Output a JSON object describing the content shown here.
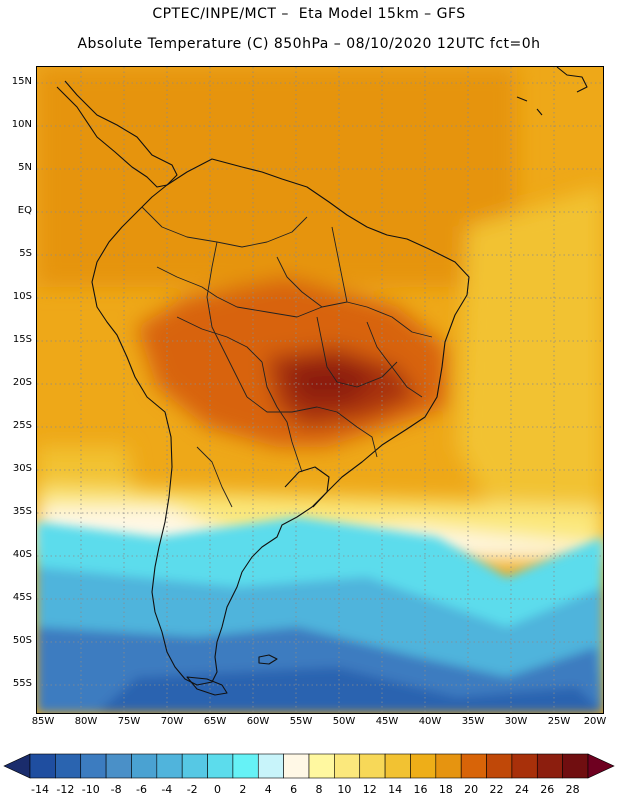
{
  "header": {
    "line1": "CPTEC/INPE/MCT –  Eta Model 15km – GFS",
    "line2": "Absolute Temperature (C) 850hPa – 08/10/2020 12UTC fct=0h"
  },
  "map": {
    "lat_labels": [
      "15N",
      "10N",
      "5N",
      "EQ",
      "5S",
      "10S",
      "15S",
      "20S",
      "25S",
      "30S",
      "35S",
      "40S",
      "45S",
      "50S",
      "55S"
    ],
    "lon_labels": [
      "85W",
      "80W",
      "75W",
      "70W",
      "65W",
      "60W",
      "55W",
      "50W",
      "45W",
      "40W",
      "35W",
      "30W",
      "25W",
      "20W"
    ],
    "field_description_colors": {
      "warm": "#e8a81c",
      "hot": "#cc5a12",
      "very_hot": "#8a2a10",
      "cool": "#66d8ea",
      "cold": "#2a7ab0"
    }
  },
  "colorbar": {
    "labels": [
      "-14",
      "-12",
      "-10",
      "-8",
      "-6",
      "-4",
      "-2",
      "0",
      "2",
      "4",
      "6",
      "8",
      "10",
      "12",
      "14",
      "16",
      "18",
      "20",
      "22",
      "24",
      "26",
      "28"
    ],
    "colors": [
      "#1f4ea0",
      "#2a64b0",
      "#3c7cc0",
      "#4a90c8",
      "#4aa2d2",
      "#50b4dc",
      "#56c8e4",
      "#5cdcec",
      "#66f2f6",
      "#c8f4fa",
      "#fff8e6",
      "#fff8a0",
      "#fbe87c",
      "#f7d858",
      "#f2c232",
      "#eeae18",
      "#e69410",
      "#d86408",
      "#c04808",
      "#a8300a",
      "#8c1e0e",
      "#700e10"
    ],
    "under_color": "#1a2c6c",
    "over_color": "#6e0020"
  }
}
